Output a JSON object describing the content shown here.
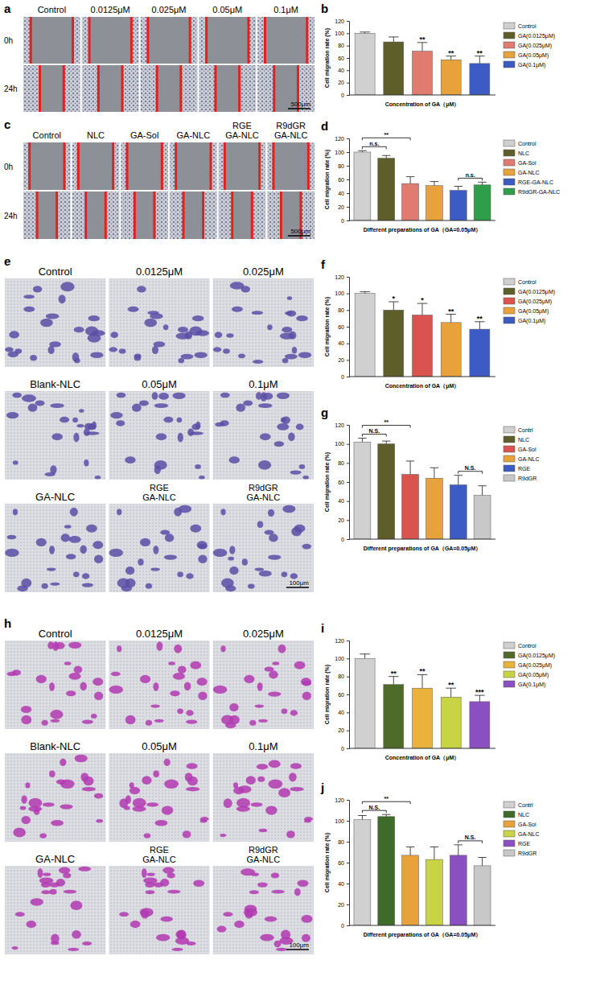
{
  "chart_data": [
    {
      "type": "bar",
      "panel_label": "b",
      "y_label": "Cell migration rate (%)",
      "x_label": "Concentration of GA（μM）",
      "categories": [
        "Control",
        "GA(0.0125μM)",
        "GA(0.025μM)",
        "GA(0.05μM)",
        "GA(0.1μM)"
      ],
      "values": [
        100,
        86,
        71,
        57,
        51
      ],
      "errors": [
        2,
        8,
        14,
        6,
        12
      ],
      "colors": [
        "#d0d0d0",
        "#5e5e2a",
        "#e07b70",
        "#e8a23c",
        "#3d5bc4"
      ],
      "significance": [
        null,
        null,
        "**",
        "**",
        "**"
      ],
      "ylim": [
        0,
        120
      ],
      "yticks": [
        0,
        20,
        40,
        60,
        80,
        100,
        120
      ],
      "tick_labels": "y",
      "legend": "right",
      "grid": false
    },
    {
      "type": "bar",
      "panel_label": "d",
      "y_label": "Cell migration rate (%)",
      "x_label": "Different preparations of GA（GA=0.05μM）",
      "categories": [
        "Control",
        "NLC",
        "GA-Sol",
        "GA-NLC",
        "RGE-GA-NLC",
        "R9dGR-GA-NLC"
      ],
      "values": [
        100,
        91,
        54,
        51,
        44,
        52
      ],
      "errors": [
        2,
        4,
        10,
        6,
        6,
        4
      ],
      "colors": [
        "#d0d0d0",
        "#5e5e2a",
        "#e07b70",
        "#e8a23c",
        "#3d5bc4",
        "#2e9e4a"
      ],
      "annotations": [
        {
          "text": "n.s.",
          "between": [
            "Control",
            "NLC"
          ]
        },
        {
          "text": "**",
          "between": [
            "Control",
            "GA-Sol"
          ]
        },
        {
          "text": "n.s.",
          "between": [
            "RGE-GA-NLC",
            "R9dGR-GA-NLC"
          ]
        }
      ],
      "ylim": [
        0,
        120
      ],
      "yticks": [
        0,
        20,
        40,
        60,
        80,
        100,
        120
      ],
      "tick_labels": "y",
      "legend": "right",
      "grid": false
    },
    {
      "type": "bar",
      "panel_label": "f",
      "y_label": "Cell migration rate (%)",
      "x_label": "Concentration of GA（μM）",
      "categories": [
        "Control",
        "GA(0.0125μM)",
        "GA(0.025μM)",
        "GA(0.05μM)",
        "GA(0.1μM)"
      ],
      "values": [
        100,
        80,
        74,
        65,
        57
      ],
      "errors": [
        2,
        10,
        14,
        10,
        9
      ],
      "colors": [
        "#d0d0d0",
        "#5e5e2a",
        "#d9534f",
        "#e8a23c",
        "#3d5bc4"
      ],
      "significance": [
        null,
        "*",
        "*",
        "**",
        "**"
      ],
      "ylim": [
        0,
        120
      ],
      "yticks": [
        0,
        20,
        40,
        60,
        80,
        100,
        120
      ],
      "tick_labels": "y",
      "legend": "right",
      "grid": false
    },
    {
      "type": "bar",
      "panel_label": "g",
      "y_label": "Cell migration rate (%)",
      "x_label": "Different preparations of GA（GA=0.05μM）",
      "categories": [
        "Contrl",
        "NLC",
        "GA-Sol",
        "GA-NLC",
        "RGE",
        "R9dGR"
      ],
      "values": [
        102,
        100,
        68,
        64,
        57,
        46
      ],
      "errors": [
        4,
        3,
        14,
        11,
        10,
        10
      ],
      "colors": [
        "#d0d0d0",
        "#5e5e2a",
        "#d9534f",
        "#e8a23c",
        "#3d5bc4",
        "#c8c8c8"
      ],
      "annotations": [
        {
          "text": "N.S.",
          "between": [
            "Contrl",
            "NLC"
          ]
        },
        {
          "text": "**",
          "between": [
            "Contrl",
            "GA-Sol"
          ]
        },
        {
          "text": "N.S.",
          "between": [
            "RGE",
            "R9dGR"
          ]
        }
      ],
      "ylim": [
        0,
        120
      ],
      "yticks": [
        0,
        20,
        40,
        60,
        80,
        100,
        120
      ],
      "tick_labels": "y",
      "legend": "right",
      "grid": false
    },
    {
      "type": "bar",
      "panel_label": "i",
      "y_label": "Cell migration rate (%)",
      "x_label": "Concentration of GA（μM）",
      "categories": [
        "Control",
        "GA(0.0125μM)",
        "GA(0.025μM)",
        "GA(0.05μM)",
        "GA(0.1μM)"
      ],
      "values": [
        100,
        71,
        67,
        57,
        52
      ],
      "errors": [
        5,
        9,
        15,
        10,
        7
      ],
      "colors": [
        "#d0d0d0",
        "#4f6b2a",
        "#e8b23c",
        "#c8d444",
        "#8a4fc0"
      ],
      "significance": [
        null,
        "**",
        "**",
        "**",
        "***"
      ],
      "ylim": [
        0,
        120
      ],
      "yticks": [
        0,
        20,
        40,
        60,
        80,
        100,
        120
      ],
      "tick_labels": "y",
      "legend": "right",
      "grid": false
    },
    {
      "type": "bar",
      "panel_label": "j",
      "y_label": "Cell migration rate (%)",
      "x_label": "Different preparations of GA（GA=0.05μM）",
      "categories": [
        "Contrl",
        "NLC",
        "GA-Sol",
        "GA-NLC",
        "RGE",
        "R9dGR"
      ],
      "values": [
        101,
        104,
        67,
        63,
        67,
        57
      ],
      "errors": [
        4,
        2,
        8,
        12,
        10,
        8
      ],
      "colors": [
        "#d0d0d0",
        "#3f6b2a",
        "#e8a23c",
        "#c8d444",
        "#8a4fc0",
        "#c8c8c8"
      ],
      "annotations": [
        {
          "text": "N.S.",
          "between": [
            "Contrl",
            "NLC"
          ]
        },
        {
          "text": "**",
          "between": [
            "Contrl",
            "GA-Sol"
          ]
        },
        {
          "text": "N.S.",
          "between": [
            "RGE",
            "R9dGR"
          ]
        }
      ],
      "ylim": [
        0,
        120
      ],
      "yticks": [
        0,
        20,
        40,
        60,
        80,
        100,
        120
      ],
      "tick_labels": "y",
      "legend": "right",
      "grid": false
    }
  ],
  "image_panels": [
    {
      "type": "wound_healing",
      "panel_label": "a",
      "columns": [
        [
          "Control"
        ],
        [
          "0.0125μM"
        ],
        [
          "0.025μM"
        ],
        [
          "0.05μM"
        ],
        [
          "0.1μM"
        ]
      ],
      "rows": [
        "0h",
        "24h"
      ],
      "scale_bar": "500μm"
    },
    {
      "type": "wound_healing",
      "panel_label": "c",
      "columns": [
        [
          "Control"
        ],
        [
          "NLC"
        ],
        [
          "GA-Sol"
        ],
        [
          "GA-NLC"
        ],
        [
          "RGE",
          "GA-NLC"
        ],
        [
          "R9dGR",
          "GA-NLC"
        ]
      ],
      "rows": [
        "0h",
        "24h"
      ],
      "scale_bar": "500μm"
    },
    {
      "type": "transwell",
      "panel_label": "e",
      "cells": [
        [
          [
            "Control"
          ],
          [
            "0.0125μM"
          ],
          [
            "0.025μM"
          ]
        ],
        [
          [
            "Blank-NLC"
          ],
          [
            "0.05μM"
          ],
          [
            "0.1μM"
          ]
        ],
        [
          [
            "GA-NLC"
          ],
          [
            "RGE",
            "GA-NLC"
          ],
          [
            "R9dGR",
            "GA-NLC"
          ]
        ]
      ],
      "scale_bar": "100μm"
    },
    {
      "type": "transwell",
      "panel_label": "h",
      "cells": [
        [
          [
            "Control"
          ],
          [
            "0.0125μM"
          ],
          [
            "0.025μM"
          ]
        ],
        [
          [
            "Blank-NLC"
          ],
          [
            "0.05μM"
          ],
          [
            "0.1μM"
          ]
        ],
        [
          [
            "GA-NLC"
          ],
          [
            "RGE",
            "GA-NLC"
          ],
          [
            "R9dGR",
            "GA-NLC"
          ]
        ]
      ],
      "scale_bar": "100μm"
    }
  ]
}
